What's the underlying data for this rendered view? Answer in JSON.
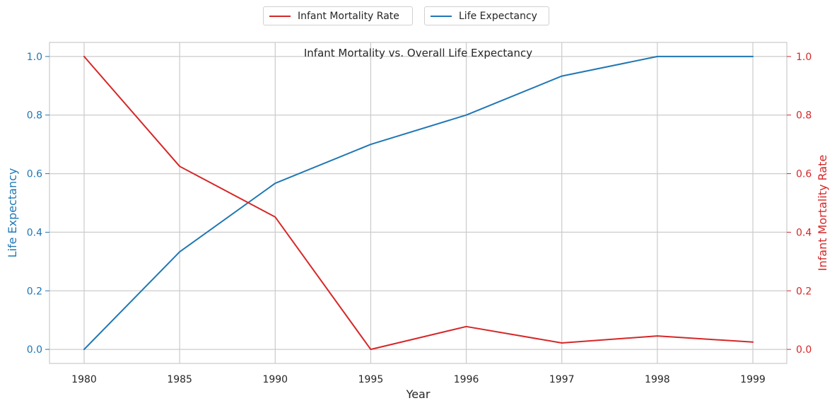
{
  "chart_data": {
    "type": "line",
    "title": "Infant Mortality vs. Overall Life Expectancy",
    "xlabel": "Year",
    "categories": [
      "1980",
      "1985",
      "1990",
      "1995",
      "1996",
      "1997",
      "1998",
      "1999"
    ],
    "series": [
      {
        "name": "Life Expectancy",
        "axis": "left",
        "color": "#1f77b4",
        "values": [
          0.0,
          0.333,
          0.567,
          0.7,
          0.8,
          0.933,
          1.0,
          1.0
        ]
      },
      {
        "name": "Infant Mortality Rate",
        "axis": "right",
        "color": "#d62728",
        "values": [
          1.0,
          0.625,
          0.452,
          0.0,
          0.078,
          0.022,
          0.046,
          0.025
        ]
      }
    ],
    "y_left": {
      "label": "Life Expectancy",
      "color": "#1f77b4",
      "range": [
        -0.048,
        1.048
      ],
      "ticks": [
        "0.0",
        "0.2",
        "0.4",
        "0.6",
        "0.8",
        "1.0"
      ]
    },
    "y_right": {
      "label": "Infant Mortality Rate",
      "color": "#d62728",
      "range": [
        -0.048,
        1.048
      ],
      "ticks": [
        "0.0",
        "0.2",
        "0.4",
        "0.6",
        "0.8",
        "1.0"
      ]
    },
    "grid": true,
    "legend": {
      "placement": "top-center",
      "entries": [
        {
          "label": "Infant Mortality Rate",
          "color": "#d62728"
        },
        {
          "label": "Life Expectancy",
          "color": "#1f77b4"
        }
      ]
    }
  }
}
